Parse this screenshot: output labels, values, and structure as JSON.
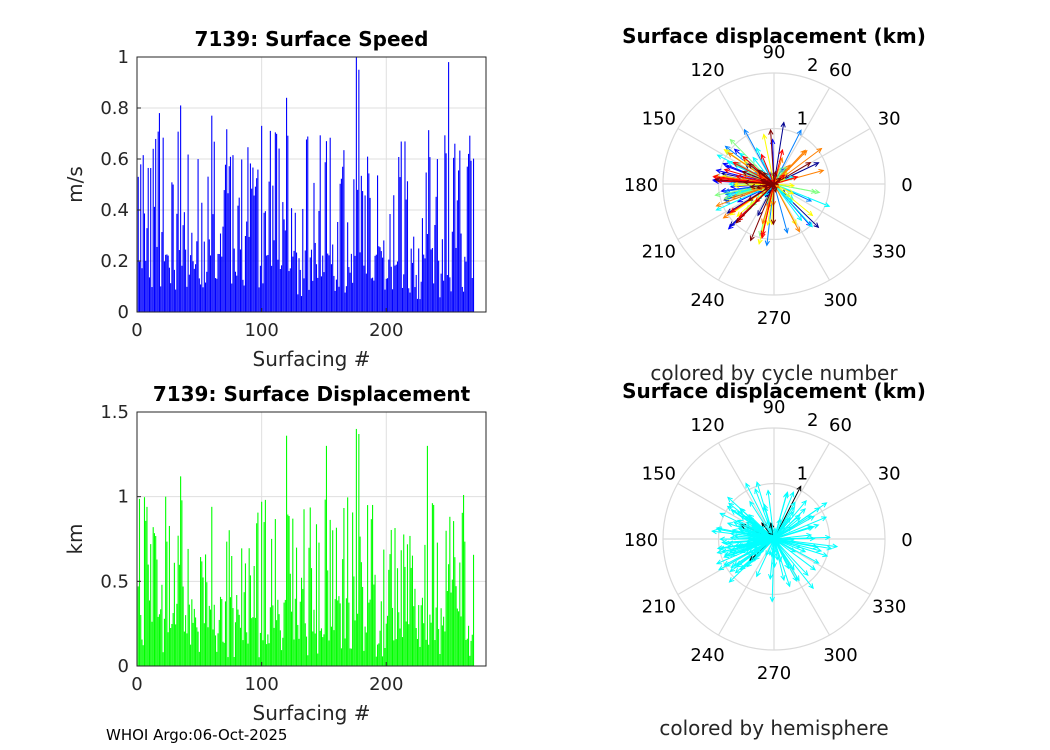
{
  "footer": "WHOI Argo:06-Oct-2025",
  "chart_data": [
    {
      "id": "speed",
      "type": "bar",
      "title": "7139: Surface Speed",
      "xlabel": "Surfacing #",
      "ylabel": "m/s",
      "xlim": [
        0,
        280
      ],
      "ylim": [
        0,
        1
      ],
      "xticks": [
        0,
        100,
        200
      ],
      "yticks": [
        0,
        0.2,
        0.4,
        0.6,
        0.8,
        1
      ],
      "ytick_labels": [
        "0",
        "0.2",
        "0.4",
        "0.6",
        "0.8",
        "1"
      ],
      "color": "#0000ff",
      "x": [
        1,
        13,
        18,
        35,
        60,
        100,
        120,
        152,
        176,
        178,
        250,
        255,
        265
      ],
      "values": [
        0.53,
        0.64,
        0.78,
        0.81,
        0.77,
        0.73,
        0.84,
        0.67,
        1.0,
        0.95,
        0.98,
        0.66,
        0.57
      ]
    },
    {
      "id": "displacement",
      "type": "bar",
      "title": "7139: Surface Displacement",
      "xlabel": "Surfacing #",
      "ylabel": "km",
      "xlim": [
        0,
        280
      ],
      "ylim": [
        0,
        1.5
      ],
      "xticks": [
        0,
        100,
        200
      ],
      "yticks": [
        0,
        0.5,
        1,
        1.5
      ],
      "ytick_labels": [
        "0",
        "0.5",
        "1",
        "1.5"
      ],
      "color": "#00ff00",
      "x": [
        1,
        13,
        23,
        35,
        60,
        100,
        120,
        152,
        176,
        178,
        233,
        262
      ],
      "values": [
        0.47,
        0.82,
        1.0,
        1.12,
        0.94,
        0.97,
        1.36,
        1.3,
        1.4,
        1.37,
        1.3,
        1.01
      ]
    },
    {
      "id": "polar-cycle",
      "type": "polar",
      "title": "Surface displacement (km)",
      "caption": "colored by cycle number",
      "rlim": [
        0,
        2
      ],
      "rticks": [
        "1",
        "2"
      ],
      "angle_labels": [
        "0",
        "30",
        "60",
        "90",
        "120",
        "150",
        "180",
        "210",
        "240",
        "270",
        "300",
        "330"
      ],
      "colors": [
        "#00008f",
        "#0000ff",
        "#0080ff",
        "#00ffff",
        "#80ff80",
        "#ffff00",
        "#ff8000",
        "#ff0000",
        "#800000"
      ],
      "vectors_note": "surface displacement arrows from origin, one per cycle, colored by cycle number"
    },
    {
      "id": "polar-hemisphere",
      "type": "polar",
      "title": "Surface displacement (km)",
      "caption": "colored by hemisphere",
      "rlim": [
        0,
        2
      ],
      "rticks": [
        "1",
        "2"
      ],
      "angle_labels": [
        "0",
        "30",
        "60",
        "90",
        "120",
        "150",
        "180",
        "210",
        "240",
        "270",
        "300",
        "330"
      ],
      "colors": [
        "#00ffff",
        "#000000"
      ],
      "vectors_note": "surface displacement arrows from origin, colored by hemisphere"
    }
  ]
}
